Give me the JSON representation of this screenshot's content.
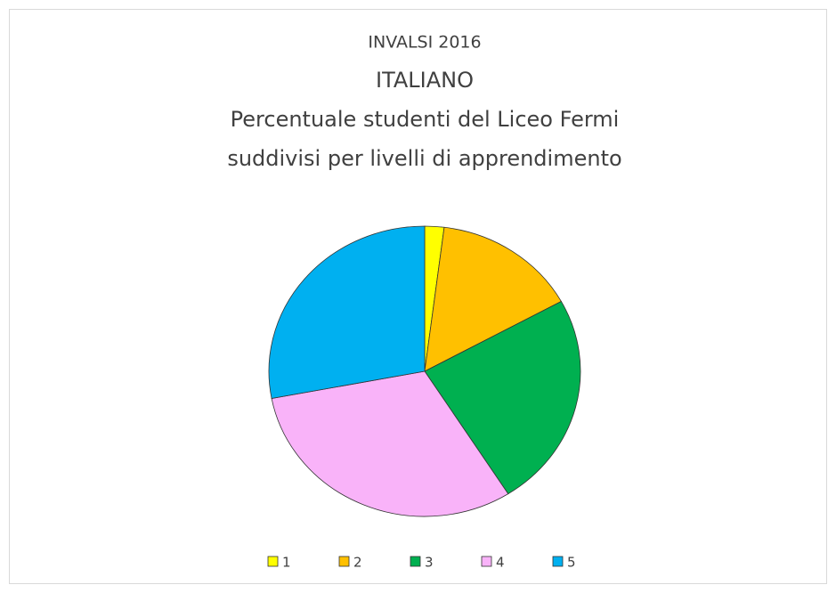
{
  "chart_data": {
    "type": "pie",
    "title": "INVALSI 2016",
    "subtitle": [
      "ITALIANO",
      "Percentuale studenti del Liceo Fermi",
      "suddivisi per livelli di apprendimento"
    ],
    "categories": [
      "1",
      "2",
      "3",
      "4",
      "5"
    ],
    "values": [
      2,
      15,
      24,
      31,
      28
    ],
    "colors": [
      "#ffff00",
      "#ffc000",
      "#00b050",
      "#f9b3f9",
      "#00b0f0"
    ],
    "legend": "bottom"
  }
}
